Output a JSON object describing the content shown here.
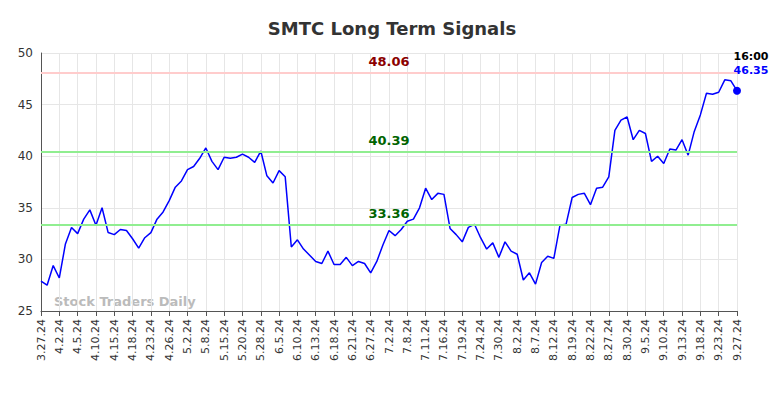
{
  "chart_data": {
    "type": "line",
    "title": "SMTC Long Term Signals",
    "color": "#0000ff",
    "grid": true,
    "ylim": [
      25,
      50
    ],
    "yticks": [
      25,
      30,
      35,
      40,
      45,
      50
    ],
    "categories": [
      "3.27.24",
      null,
      null,
      "4.2.24",
      null,
      null,
      "4.5.24",
      null,
      null,
      "4.10.24",
      null,
      null,
      "4.15.24",
      null,
      null,
      "4.18.24",
      null,
      null,
      "4.23.24",
      null,
      null,
      "4.26.24",
      null,
      null,
      "5.2.24",
      null,
      null,
      "5.8.24",
      null,
      null,
      "5.15.24",
      null,
      null,
      "5.20.24",
      null,
      null,
      "5.28.24",
      null,
      null,
      "6.5.24",
      null,
      null,
      "6.10.24",
      null,
      null,
      "6.13.24",
      null,
      null,
      "6.18.24",
      null,
      null,
      "6.21.24",
      null,
      null,
      "6.27.24",
      null,
      null,
      "7.2.24",
      null,
      null,
      "7.8.24",
      null,
      null,
      "7.11.24",
      null,
      null,
      "7.16.24",
      null,
      null,
      "7.19.24",
      null,
      null,
      "7.24.24",
      null,
      null,
      "7.30.24",
      null,
      null,
      "8.2.24",
      null,
      null,
      "8.7.24",
      null,
      null,
      "8.12.24",
      null,
      null,
      "8.19.24",
      null,
      null,
      "8.22.24",
      null,
      null,
      "8.27.24",
      null,
      null,
      "8.30.24",
      null,
      null,
      "9.5.24",
      null,
      null,
      "9.10.24",
      null,
      null,
      "9.13.24",
      null,
      null,
      "9.18.24",
      null,
      null,
      "9.23.24",
      null,
      null,
      "9.27.24"
    ],
    "values": [
      27.9,
      27.5,
      29.4,
      28.2,
      31.5,
      33.1,
      32.5,
      33.9,
      34.8,
      33.3,
      35.0,
      32.6,
      32.4,
      32.9,
      32.8,
      32.0,
      31.1,
      32.1,
      32.6,
      33.9,
      34.6,
      35.7,
      37.0,
      37.6,
      38.7,
      39.0,
      39.8,
      40.8,
      39.5,
      38.7,
      39.9,
      39.8,
      39.9,
      40.2,
      39.9,
      39.4,
      40.5,
      38.1,
      37.4,
      38.6,
      38.0,
      31.2,
      31.9,
      31.0,
      30.4,
      29.8,
      29.6,
      30.8,
      29.5,
      29.5,
      30.2,
      29.4,
      29.8,
      29.6,
      28.7,
      29.8,
      31.4,
      32.8,
      32.3,
      32.9,
      33.7,
      33.9,
      35.0,
      36.9,
      35.8,
      36.4,
      36.3,
      33.0,
      32.4,
      31.7,
      33.1,
      33.4,
      32.1,
      31.0,
      31.6,
      30.2,
      31.7,
      30.8,
      30.5,
      28.0,
      28.7,
      27.6,
      29.7,
      30.3,
      30.1,
      33.3,
      33.4,
      36.0,
      36.3,
      36.4,
      35.3,
      36.9,
      37.0,
      38.0,
      42.5,
      43.5,
      43.8,
      41.6,
      42.5,
      42.2,
      39.5,
      40.0,
      39.3,
      40.7,
      40.6,
      41.6,
      40.1,
      42.4,
      44.0,
      46.1,
      46.0,
      46.2,
      47.4,
      47.3,
      46.35
    ],
    "annotations": [
      {
        "value": 48.06,
        "line_color": "#ffcccc",
        "text_color": "#8b0000"
      },
      {
        "value": 40.39,
        "line_color": "#90ee90",
        "text_color": "#006400"
      },
      {
        "value": 33.36,
        "line_color": "#90ee90",
        "text_color": "#006400"
      }
    ],
    "end_label": "16:00",
    "watermark": "Stock Traders Daily"
  }
}
